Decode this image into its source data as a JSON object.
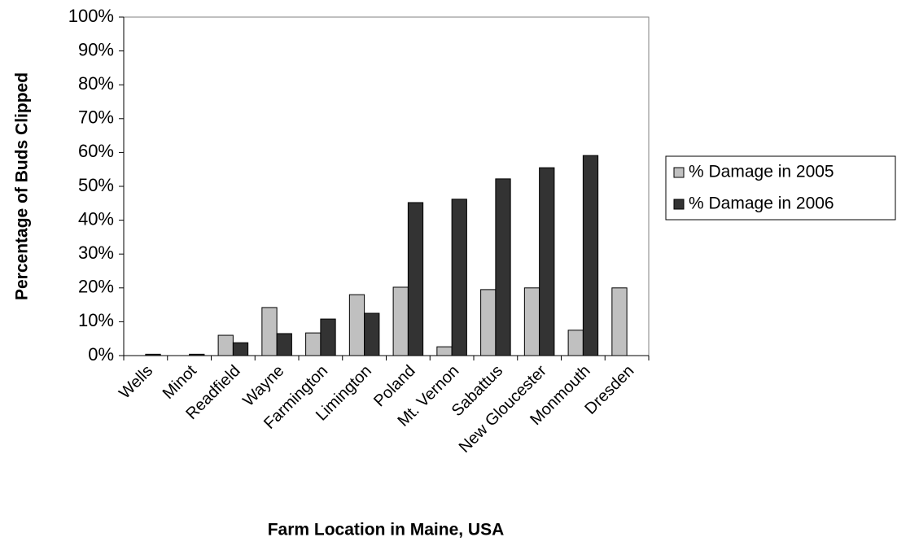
{
  "chart_data": {
    "type": "bar",
    "xlabel": "Farm Location in Maine, USA",
    "ylabel": "Percentage of Buds Clipped",
    "categories": [
      "Wells",
      "Minot",
      "Readfield",
      "Wayne",
      "Farmington",
      "Limington",
      "Poland",
      "Mt. Vernon",
      "Sabattus",
      "New Gloucester",
      "Monmouth",
      "Dresden"
    ],
    "series": [
      {
        "name": "% Damage in 2005",
        "color": "#c0c0c0",
        "values": [
          0,
          0,
          6.0,
          14.2,
          6.7,
          18.0,
          20.2,
          2.6,
          19.5,
          20.0,
          7.5,
          20.0
        ]
      },
      {
        "name": "% Damage in 2006",
        "color": "#333333",
        "values": [
          0.4,
          0.4,
          3.8,
          6.5,
          10.8,
          12.5,
          45.2,
          46.2,
          52.2,
          55.5,
          59.1,
          null
        ]
      }
    ],
    "ylim": [
      0,
      100
    ],
    "yticks": [
      {
        "value": 0,
        "label": "0%"
      },
      {
        "value": 10,
        "label": "10%"
      },
      {
        "value": 20,
        "label": "20%"
      },
      {
        "value": 30,
        "label": "30%"
      },
      {
        "value": 40,
        "label": "40%"
      },
      {
        "value": 50,
        "label": "50%"
      },
      {
        "value": 60,
        "label": "60%"
      },
      {
        "value": 70,
        "label": "70%"
      },
      {
        "value": 80,
        "label": "80%"
      },
      {
        "value": 90,
        "label": "90%"
      },
      {
        "value": 100,
        "label": "100%"
      }
    ],
    "legend": "right"
  }
}
